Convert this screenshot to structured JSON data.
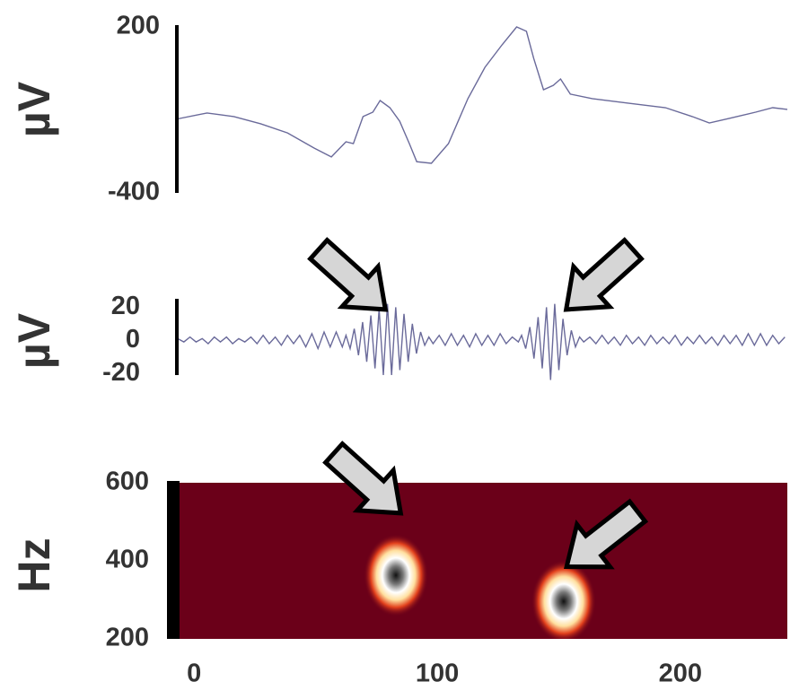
{
  "chart_data": [
    {
      "type": "line",
      "ylabel": "µV",
      "color": "#6a6a9a",
      "xlim": [
        -6,
        244
      ],
      "ylim": [
        -400,
        200
      ],
      "yticks": [
        200,
        -400
      ],
      "x": [
        -7,
        6,
        17,
        28,
        39,
        50,
        57,
        63,
        66,
        70,
        74,
        77,
        81,
        85,
        89,
        92,
        98,
        105,
        113,
        120,
        127,
        133,
        137,
        140,
        144,
        148,
        151,
        155,
        164,
        179,
        194,
        205,
        212,
        220,
        231,
        238,
        244
      ],
      "values": [
        -134,
        -111,
        -124,
        -150,
        -183,
        -238,
        -270,
        -215,
        -222,
        -124,
        -108,
        -66,
        -92,
        -141,
        -222,
        -287,
        -293,
        -222,
        -59,
        54,
        135,
        200,
        184,
        86,
        -27,
        -11,
        12,
        -43,
        -59,
        -76,
        -92,
        -124,
        -147,
        -131,
        -108,
        -92,
        -98
      ]
    },
    {
      "type": "line",
      "ylabel": "µV",
      "color": "#6a6a9a",
      "xlim": [
        -6,
        244
      ],
      "ylim": [
        -21,
        24
      ],
      "yticks": [
        20,
        0,
        -20
      ],
      "x": [
        -6,
        -3.5,
        -1,
        1.5,
        4,
        6.5,
        9,
        11.5,
        14,
        16.5,
        19,
        21.5,
        24,
        26.5,
        29,
        31.5,
        34,
        36.5,
        39,
        41.5,
        44,
        46.5,
        49,
        51.5,
        54,
        56.5,
        59,
        61.5,
        63,
        64.7,
        66.4,
        68.1,
        69.8,
        71.5,
        73.2,
        74.9,
        76.6,
        78.3,
        80,
        81.7,
        83.4,
        85.1,
        86.8,
        88.5,
        90.2,
        91.9,
        93.6,
        95.3,
        97,
        98.7,
        101.2,
        103.7,
        106.2,
        108.7,
        111.2,
        113.7,
        116.2,
        118.7,
        121.2,
        123.7,
        126.2,
        128.7,
        131.2,
        133.7,
        135,
        136.7,
        138.4,
        140.1,
        141.8,
        143.5,
        145.2,
        146.9,
        148.6,
        150.3,
        152,
        153.7,
        155.4,
        157.1,
        158.8,
        160.5,
        163,
        165.5,
        168,
        170.5,
        173,
        175.5,
        178,
        180.5,
        183,
        185.5,
        188,
        190.5,
        193,
        195.5,
        198,
        200.5,
        203,
        205.5,
        208,
        210.5,
        213,
        215.5,
        218,
        220.5,
        223,
        225.5,
        228,
        230.5,
        233,
        235.5,
        238,
        240.5,
        243
      ],
      "values": [
        1,
        -1,
        2,
        -1,
        1,
        -2,
        2,
        -1,
        2,
        -2,
        1,
        -1,
        2,
        -2,
        3,
        -2,
        2,
        -3,
        3,
        -2,
        3,
        -4,
        4,
        -5,
        5,
        -4,
        5,
        -4,
        3,
        -5,
        7,
        -9,
        11,
        -13,
        15,
        -17,
        19,
        -21,
        22,
        -21,
        20,
        -18,
        16,
        -13,
        10,
        -8,
        5,
        -3,
        2,
        -2,
        3,
        -3,
        4,
        -3,
        3,
        -4,
        4,
        -3,
        3,
        -3,
        4,
        -2,
        2,
        -1,
        3,
        -5,
        8,
        -11,
        14,
        -17,
        20,
        -24,
        22,
        -18,
        13,
        -9,
        6,
        -4,
        2,
        -1,
        2,
        -2,
        3,
        -2,
        2,
        -3,
        3,
        -2,
        2,
        -3,
        3,
        -2,
        2,
        -2,
        3,
        -3,
        2,
        -2,
        3,
        -2,
        2,
        -3,
        3,
        -2,
        3,
        -3,
        4,
        -3,
        4,
        -3,
        3,
        -2,
        2
      ]
    },
    {
      "type": "heatmap",
      "ylabel": "Hz",
      "background": "#6b0019",
      "xlim": [
        -6,
        244
      ],
      "ylim": [
        200,
        600
      ],
      "yticks": [
        600,
        400,
        200
      ],
      "xticks": [
        0,
        100,
        200
      ],
      "peaks": [
        {
          "x": 83,
          "y": 363
        },
        {
          "x": 152,
          "y": 296
        }
      ]
    }
  ]
}
